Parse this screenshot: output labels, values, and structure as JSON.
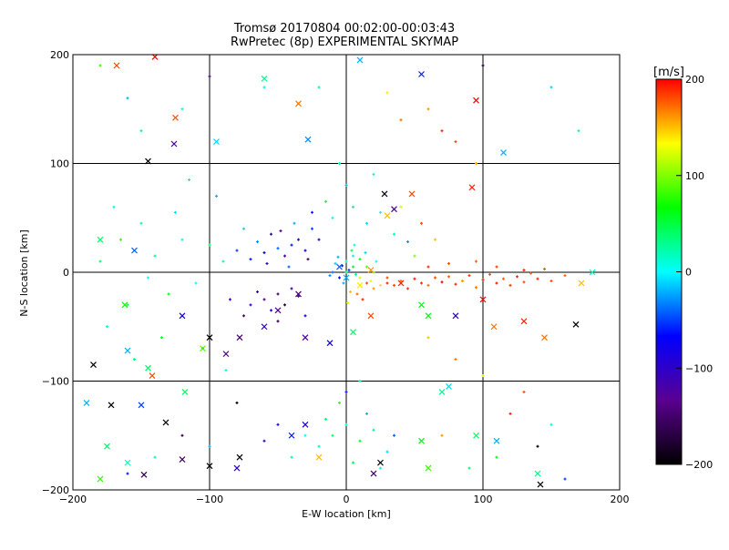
{
  "chart_data": {
    "type": "scatter",
    "title": "Tromsø 20170804 00:02:00-00:03:43",
    "subtitle": "RwPretec (8p) EXPERIMENTAL SKYMAP",
    "xlabel": "E-W location [km]",
    "ylabel": "N-S location [km]",
    "xlim": [
      -200,
      200
    ],
    "ylim": [
      -200,
      200
    ],
    "xticks": [
      -200,
      -100,
      0,
      100,
      200
    ],
    "yticks": [
      -200,
      -100,
      0,
      100,
      200
    ],
    "grid": true,
    "colorbar": {
      "label": "[m/s]",
      "min": -200,
      "max": 200,
      "ticks": [
        200,
        100,
        0,
        -100,
        -200
      ],
      "colors": [
        "#000000",
        "#5a0090",
        "#0000ff",
        "#00ffff",
        "#00ff00",
        "#ffff00",
        "#ff0000"
      ]
    },
    "points": [
      [
        0,
        0,
        40,
        "+"
      ],
      [
        5,
        5,
        55,
        "+"
      ],
      [
        10,
        -5,
        120,
        "+"
      ],
      [
        15,
        -10,
        180,
        "+"
      ],
      [
        20,
        -15,
        160,
        "+"
      ],
      [
        25,
        -12,
        140,
        "+"
      ],
      [
        -5,
        -5,
        -80,
        "+"
      ],
      [
        -10,
        0,
        -40,
        "+"
      ],
      [
        0,
        10,
        20,
        "+"
      ],
      [
        5,
        15,
        10,
        "+"
      ],
      [
        10,
        12,
        60,
        "+"
      ],
      [
        15,
        5,
        90,
        "+"
      ],
      [
        20,
        0,
        100,
        "+"
      ],
      [
        -2,
        -10,
        -20,
        "+"
      ],
      [
        3,
        -18,
        150,
        "+"
      ],
      [
        8,
        -20,
        170,
        "+"
      ],
      [
        12,
        -25,
        190,
        "+"
      ],
      [
        18,
        -8,
        130,
        "+"
      ],
      [
        -3,
        6,
        -60,
        "+"
      ],
      [
        -8,
        8,
        -10,
        "+"
      ],
      [
        2,
        2,
        -50,
        "+"
      ],
      [
        7,
        -2,
        30,
        "+"
      ],
      [
        -12,
        -3,
        -30,
        "+"
      ],
      [
        4,
        20,
        40,
        "+"
      ],
      [
        6,
        25,
        10,
        "+"
      ],
      [
        14,
        18,
        -10,
        "+"
      ],
      [
        22,
        10,
        0,
        "+"
      ],
      [
        -6,
        14,
        -20,
        "+"
      ],
      [
        1,
        -28,
        120,
        "+"
      ],
      [
        30,
        -5,
        180,
        "+"
      ],
      [
        30,
        -10,
        190,
        "+"
      ],
      [
        35,
        -12,
        180,
        "+"
      ],
      [
        40,
        -8,
        170,
        "+"
      ],
      [
        45,
        -15,
        185,
        "+"
      ],
      [
        50,
        -6,
        195,
        "+"
      ],
      [
        55,
        -10,
        190,
        "+"
      ],
      [
        60,
        -12,
        170,
        "+"
      ],
      [
        65,
        -5,
        180,
        "+"
      ],
      [
        70,
        -9,
        200,
        "+"
      ],
      [
        75,
        -4,
        175,
        "+"
      ],
      [
        80,
        -11,
        190,
        "+"
      ],
      [
        85,
        -8,
        160,
        "+"
      ],
      [
        90,
        -3,
        185,
        "+"
      ],
      [
        95,
        -14,
        170,
        "+"
      ],
      [
        100,
        -7,
        190,
        "+"
      ],
      [
        105,
        -2,
        180,
        "+"
      ],
      [
        110,
        -10,
        195,
        "+"
      ],
      [
        115,
        -6,
        175,
        "+"
      ],
      [
        120,
        -12,
        185,
        "+"
      ],
      [
        125,
        -4,
        190,
        "+"
      ],
      [
        130,
        -9,
        180,
        "+"
      ],
      [
        135,
        -1,
        170,
        "+"
      ],
      [
        140,
        -6,
        190,
        "+"
      ],
      [
        150,
        -8,
        180,
        "+"
      ],
      [
        160,
        -3,
        175,
        "+"
      ],
      [
        60,
        5,
        190,
        "+"
      ],
      [
        75,
        8,
        180,
        "+"
      ],
      [
        95,
        10,
        175,
        "+"
      ],
      [
        110,
        5,
        185,
        "+"
      ],
      [
        130,
        2,
        190,
        "+"
      ],
      [
        145,
        3,
        180,
        "+"
      ],
      [
        -30,
        20,
        -80,
        "+"
      ],
      [
        -35,
        30,
        -100,
        "+"
      ],
      [
        -40,
        25,
        -60,
        "+"
      ],
      [
        -45,
        15,
        -120,
        "+"
      ],
      [
        -50,
        22,
        -40,
        "+"
      ],
      [
        -55,
        35,
        -90,
        "+"
      ],
      [
        -60,
        18,
        -70,
        "+"
      ],
      [
        -25,
        40,
        -50,
        "+"
      ],
      [
        -20,
        30,
        -110,
        "+"
      ],
      [
        -65,
        28,
        -30,
        "+"
      ],
      [
        -70,
        12,
        -60,
        "+"
      ],
      [
        -38,
        45,
        -20,
        "+"
      ],
      [
        -48,
        38,
        -130,
        "+"
      ],
      [
        -58,
        8,
        -100,
        "+"
      ],
      [
        -28,
        12,
        -150,
        "+"
      ],
      [
        -42,
        5,
        -40,
        "+"
      ],
      [
        -75,
        40,
        -10,
        "+"
      ],
      [
        -80,
        20,
        -50,
        "+"
      ],
      [
        -40,
        -15,
        -120,
        "+"
      ],
      [
        -50,
        -20,
        -160,
        "+"
      ],
      [
        -60,
        -25,
        -140,
        "+"
      ],
      [
        -55,
        -35,
        -90,
        "+"
      ],
      [
        -65,
        -18,
        -110,
        "+"
      ],
      [
        -45,
        -30,
        -180,
        "+"
      ],
      [
        -70,
        -30,
        -100,
        "+"
      ],
      [
        -35,
        -22,
        -130,
        "+"
      ],
      [
        -75,
        -40,
        -150,
        "+"
      ],
      [
        -30,
        -40,
        -80,
        "+"
      ],
      [
        -50,
        -45,
        -170,
        "+"
      ],
      [
        -85,
        -25,
        -120,
        "+"
      ],
      [
        -90,
        10,
        20,
        "+"
      ],
      [
        -100,
        25,
        40,
        "+"
      ],
      [
        -110,
        -10,
        0,
        "+"
      ],
      [
        -120,
        30,
        10,
        "+"
      ],
      [
        -130,
        -20,
        60,
        "+"
      ],
      [
        -140,
        15,
        30,
        "+"
      ],
      [
        -150,
        45,
        20,
        "+"
      ],
      [
        -160,
        -30,
        50,
        "+"
      ],
      [
        -170,
        60,
        10,
        "+"
      ],
      [
        -180,
        10,
        40,
        "+"
      ],
      [
        -95,
        70,
        -20,
        "+"
      ],
      [
        -115,
        85,
        30,
        "+"
      ],
      [
        -135,
        -60,
        60,
        "+"
      ],
      [
        -155,
        -80,
        40,
        "+"
      ],
      [
        -175,
        -50,
        20,
        "+"
      ],
      [
        -105,
        -70,
        -30,
        "+"
      ],
      [
        -88,
        -90,
        10,
        "+"
      ],
      [
        -125,
        55,
        -10,
        "+"
      ],
      [
        -145,
        -5,
        0,
        "+"
      ],
      [
        -165,
        30,
        80,
        "+"
      ],
      [
        -20,
        -160,
        20,
        "+"
      ],
      [
        -10,
        -150,
        40,
        "+"
      ],
      [
        0,
        -140,
        10,
        "+"
      ],
      [
        10,
        -155,
        60,
        "+"
      ],
      [
        20,
        -145,
        30,
        "+"
      ],
      [
        30,
        -165,
        -10,
        "+"
      ],
      [
        -30,
        -150,
        0,
        "+"
      ],
      [
        -40,
        -170,
        20,
        "+"
      ],
      [
        5,
        -175,
        50,
        "+"
      ],
      [
        15,
        -130,
        -20,
        "+"
      ],
      [
        -15,
        -135,
        40,
        "+"
      ],
      [
        25,
        -180,
        10,
        "+"
      ],
      [
        35,
        -150,
        -40,
        "+"
      ],
      [
        -5,
        -120,
        80,
        "+"
      ],
      [
        0,
        -110,
        -60,
        "+"
      ],
      [
        10,
        -100,
        20,
        "+"
      ],
      [
        -50,
        -140,
        -90,
        "+"
      ],
      [
        -60,
        -155,
        -110,
        "+"
      ],
      [
        -10,
        50,
        10,
        "+"
      ],
      [
        5,
        60,
        30,
        "+"
      ],
      [
        15,
        45,
        -10,
        "+"
      ],
      [
        25,
        55,
        0,
        "+"
      ],
      [
        35,
        35,
        20,
        "+"
      ],
      [
        45,
        28,
        -30,
        "+"
      ],
      [
        -15,
        65,
        40,
        "+"
      ],
      [
        0,
        80,
        -20,
        "+"
      ],
      [
        20,
        90,
        10,
        "+"
      ],
      [
        -5,
        100,
        30,
        "+"
      ],
      [
        40,
        60,
        120,
        "+"
      ],
      [
        55,
        45,
        180,
        "+"
      ],
      [
        65,
        30,
        150,
        "+"
      ],
      [
        50,
        15,
        100,
        "+"
      ],
      [
        -25,
        55,
        -60,
        "+"
      ],
      [
        40,
        140,
        170,
        "+"
      ],
      [
        60,
        150,
        160,
        "+"
      ],
      [
        70,
        130,
        190,
        "+"
      ],
      [
        80,
        120,
        180,
        "+"
      ],
      [
        95,
        100,
        160,
        "+"
      ],
      [
        30,
        165,
        140,
        "+"
      ],
      [
        -100,
        180,
        -140,
        "+"
      ],
      [
        -60,
        170,
        10,
        "+"
      ],
      [
        -150,
        130,
        30,
        "+"
      ],
      [
        -160,
        160,
        -20,
        "+"
      ],
      [
        -180,
        190,
        80,
        "+"
      ],
      [
        -120,
        150,
        10,
        "+"
      ],
      [
        150,
        170,
        -10,
        "+"
      ],
      [
        170,
        130,
        20,
        "+"
      ],
      [
        100,
        190,
        -180,
        "+"
      ],
      [
        -20,
        170,
        20,
        "+"
      ],
      [
        60,
        -60,
        150,
        "+"
      ],
      [
        80,
        -80,
        170,
        "+"
      ],
      [
        100,
        -95,
        120,
        "+"
      ],
      [
        120,
        -130,
        190,
        "+"
      ],
      [
        140,
        -160,
        -200,
        "+"
      ],
      [
        110,
        -170,
        60,
        "+"
      ],
      [
        90,
        -180,
        40,
        "+"
      ],
      [
        70,
        -150,
        160,
        "+"
      ],
      [
        130,
        -110,
        180,
        "+"
      ],
      [
        150,
        -140,
        10,
        "+"
      ],
      [
        160,
        -190,
        -50,
        "+"
      ],
      [
        -140,
        -170,
        20,
        "+"
      ],
      [
        -160,
        -185,
        -60,
        "+"
      ],
      [
        -120,
        -150,
        -160,
        "+"
      ],
      [
        -80,
        -120,
        -200,
        "+"
      ],
      [
        -100,
        -160,
        -20,
        "+"
      ],
      [
        -168,
        190,
        180,
        "x"
      ],
      [
        -140,
        198,
        200,
        "x"
      ],
      [
        -60,
        178,
        30,
        "x"
      ],
      [
        -35,
        155,
        170,
        "x"
      ],
      [
        -28,
        122,
        -30,
        "x"
      ],
      [
        10,
        195,
        -20,
        "x"
      ],
      [
        55,
        182,
        -60,
        "x"
      ],
      [
        95,
        158,
        200,
        "x"
      ],
      [
        -125,
        142,
        180,
        "x"
      ],
      [
        -126,
        118,
        -120,
        "x"
      ],
      [
        -145,
        102,
        -200,
        "x"
      ],
      [
        -95,
        120,
        -10,
        "x"
      ],
      [
        115,
        110,
        -20,
        "x"
      ],
      [
        -118,
        -110,
        40,
        "x"
      ],
      [
        75,
        -105,
        -10,
        "x"
      ],
      [
        -150,
        -122,
        -50,
        "x"
      ],
      [
        -185,
        -85,
        -200,
        "x"
      ],
      [
        -172,
        -122,
        -200,
        "x"
      ],
      [
        60,
        -40,
        60,
        "x"
      ],
      [
        35,
        58,
        -120,
        "x"
      ],
      [
        28,
        72,
        -190,
        "x"
      ],
      [
        30,
        52,
        150,
        "x"
      ],
      [
        48,
        72,
        180,
        "x"
      ],
      [
        92,
        78,
        190,
        "x"
      ],
      [
        -180,
        30,
        40,
        "x"
      ],
      [
        -155,
        20,
        -40,
        "x"
      ],
      [
        -162,
        -30,
        70,
        "x"
      ],
      [
        -120,
        -40,
        -80,
        "x"
      ],
      [
        -100,
        -60,
        -200,
        "x"
      ],
      [
        -88,
        -75,
        -140,
        "x"
      ],
      [
        -105,
        -70,
        90,
        "x"
      ],
      [
        -60,
        -50,
        -100,
        "x"
      ],
      [
        -78,
        -60,
        -150,
        "x"
      ],
      [
        -50,
        -35,
        -130,
        "x"
      ],
      [
        -12,
        -65,
        -80,
        "x"
      ],
      [
        5,
        -55,
        40,
        "x"
      ],
      [
        18,
        -40,
        180,
        "x"
      ],
      [
        40,
        -10,
        190,
        "x"
      ],
      [
        55,
        -30,
        60,
        "x"
      ],
      [
        80,
        -40,
        -100,
        "x"
      ],
      [
        100,
        -25,
        200,
        "x"
      ],
      [
        108,
        -50,
        170,
        "x"
      ],
      [
        130,
        -45,
        190,
        "x"
      ],
      [
        145,
        -60,
        170,
        "x"
      ],
      [
        168,
        -48,
        -200,
        "x"
      ],
      [
        172,
        -10,
        150,
        "x"
      ],
      [
        180,
        0,
        20,
        "x"
      ],
      [
        -40,
        -150,
        -60,
        "x"
      ],
      [
        -30,
        -140,
        -90,
        "x"
      ],
      [
        -20,
        -170,
        150,
        "x"
      ],
      [
        20,
        -185,
        -150,
        "x"
      ],
      [
        25,
        -175,
        -200,
        "x"
      ],
      [
        -80,
        -180,
        -100,
        "x"
      ],
      [
        -78,
        -170,
        -200,
        "x"
      ],
      [
        -100,
        -178,
        -200,
        "x"
      ],
      [
        -120,
        -172,
        -150,
        "x"
      ],
      [
        -132,
        -138,
        -200,
        "x"
      ],
      [
        -148,
        -186,
        -160,
        "x"
      ],
      [
        -160,
        -175,
        20,
        "x"
      ],
      [
        -180,
        -190,
        80,
        "x"
      ],
      [
        -175,
        -160,
        40,
        "x"
      ],
      [
        -190,
        -120,
        -20,
        "x"
      ],
      [
        -145,
        -88,
        40,
        "x"
      ],
      [
        -142,
        -95,
        180,
        "x"
      ],
      [
        55,
        -155,
        60,
        "x"
      ],
      [
        60,
        -180,
        80,
        "x"
      ],
      [
        70,
        -110,
        30,
        "x"
      ],
      [
        95,
        -150,
        40,
        "x"
      ],
      [
        110,
        -155,
        -20,
        "x"
      ],
      [
        140,
        -185,
        30,
        "x"
      ],
      [
        142,
        -195,
        -200,
        "x"
      ],
      [
        -160,
        -72,
        -20,
        "x"
      ],
      [
        -30,
        -60,
        -120,
        "x"
      ],
      [
        -35,
        -20,
        -150,
        "x"
      ],
      [
        18,
        2,
        160,
        "x"
      ],
      [
        10,
        -12,
        140,
        "x"
      ],
      [
        -5,
        5,
        -40,
        "x"
      ],
      [
        0,
        -5,
        -20,
        "x"
      ]
    ]
  }
}
